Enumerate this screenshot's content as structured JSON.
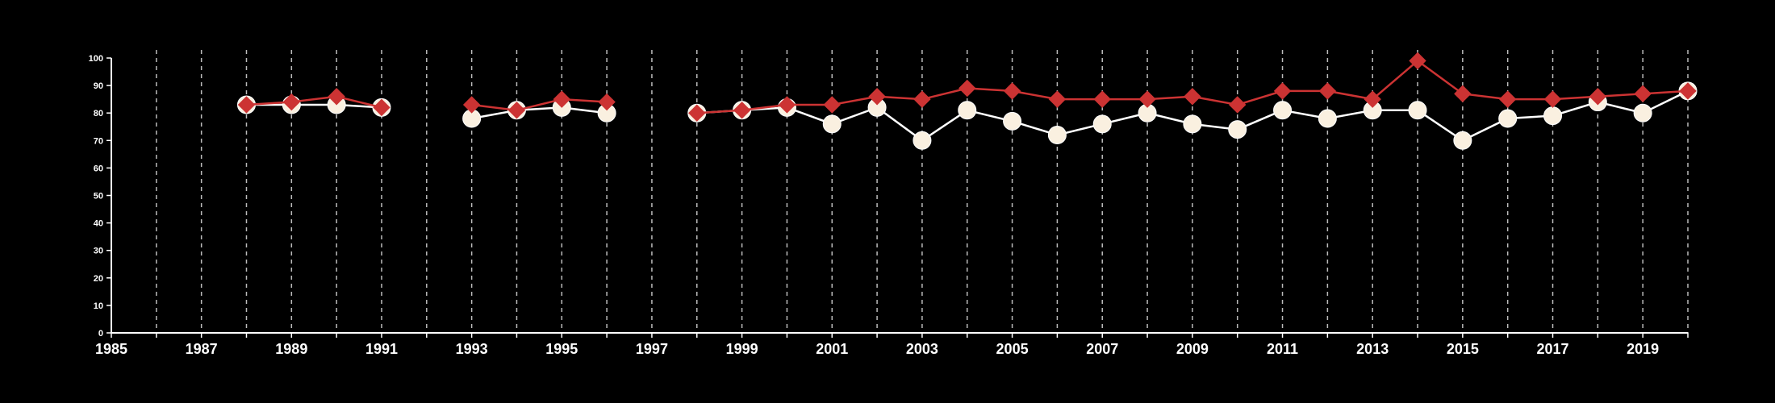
{
  "chart_data": {
    "type": "line",
    "xlim": [
      1985,
      2020
    ],
    "ylim": [
      0,
      100
    ],
    "x_ticks": [
      1985,
      1987,
      1989,
      1991,
      1993,
      1995,
      1997,
      1999,
      2001,
      2003,
      2005,
      2007,
      2009,
      2011,
      2013,
      2015,
      2017,
      2019
    ],
    "y_ticks": [
      0,
      10,
      20,
      30,
      40,
      50,
      60,
      70,
      80,
      90,
      100
    ],
    "vertical_grid_years": [
      1986,
      1987,
      1988,
      1989,
      1990,
      1991,
      1992,
      1993,
      1994,
      1995,
      1996,
      1997,
      1998,
      1999,
      2000,
      2001,
      2002,
      2003,
      2004,
      2005,
      2006,
      2007,
      2008,
      2009,
      2010,
      2011,
      2012,
      2013,
      2014,
      2015,
      2016,
      2017,
      2018,
      2019,
      2020
    ],
    "grid": "vertical dashed",
    "series": [
      {
        "marker": "circle",
        "color": "#ffffff",
        "fill": "#faf0e0",
        "points": [
          [
            1988,
            83
          ],
          [
            1989,
            83
          ],
          [
            1990,
            83
          ],
          [
            1991,
            82
          ],
          null,
          [
            1993,
            78
          ],
          [
            1994,
            81
          ],
          [
            1995,
            82
          ],
          [
            1996,
            80
          ],
          null,
          [
            1998,
            80
          ],
          [
            1999,
            81
          ],
          [
            2000,
            82
          ],
          [
            2001,
            76
          ],
          [
            2002,
            82
          ],
          [
            2003,
            70
          ],
          [
            2004,
            81
          ],
          [
            2005,
            77
          ],
          [
            2006,
            72
          ],
          [
            2007,
            76
          ],
          [
            2008,
            80
          ],
          [
            2009,
            76
          ],
          [
            2010,
            74
          ],
          [
            2011,
            81
          ],
          [
            2012,
            78
          ],
          [
            2013,
            81
          ],
          [
            2014,
            81
          ],
          [
            2015,
            70
          ],
          [
            2016,
            78
          ],
          [
            2017,
            79
          ],
          [
            2018,
            84
          ],
          [
            2019,
            80
          ],
          [
            2020,
            88
          ]
        ]
      },
      {
        "marker": "diamond",
        "color": "#cc3333",
        "fill": "#cc3333",
        "points": [
          [
            1988,
            83
          ],
          [
            1989,
            84
          ],
          [
            1990,
            86
          ],
          [
            1991,
            82
          ],
          null,
          [
            1993,
            83
          ],
          [
            1994,
            81
          ],
          [
            1995,
            85
          ],
          [
            1996,
            84
          ],
          null,
          [
            1998,
            80
          ],
          [
            1999,
            81
          ],
          [
            2000,
            83
          ],
          [
            2001,
            83
          ],
          [
            2002,
            86
          ],
          [
            2003,
            85
          ],
          [
            2004,
            89
          ],
          [
            2005,
            88
          ],
          [
            2006,
            85
          ],
          [
            2007,
            85
          ],
          [
            2008,
            85
          ],
          [
            2009,
            86
          ],
          [
            2010,
            83
          ],
          [
            2011,
            88
          ],
          [
            2012,
            88
          ],
          [
            2013,
            85
          ],
          [
            2014,
            99
          ],
          [
            2015,
            87
          ],
          [
            2016,
            85
          ],
          [
            2017,
            85
          ],
          [
            2018,
            86
          ],
          [
            2019,
            87
          ],
          [
            2020,
            88
          ]
        ]
      }
    ]
  }
}
